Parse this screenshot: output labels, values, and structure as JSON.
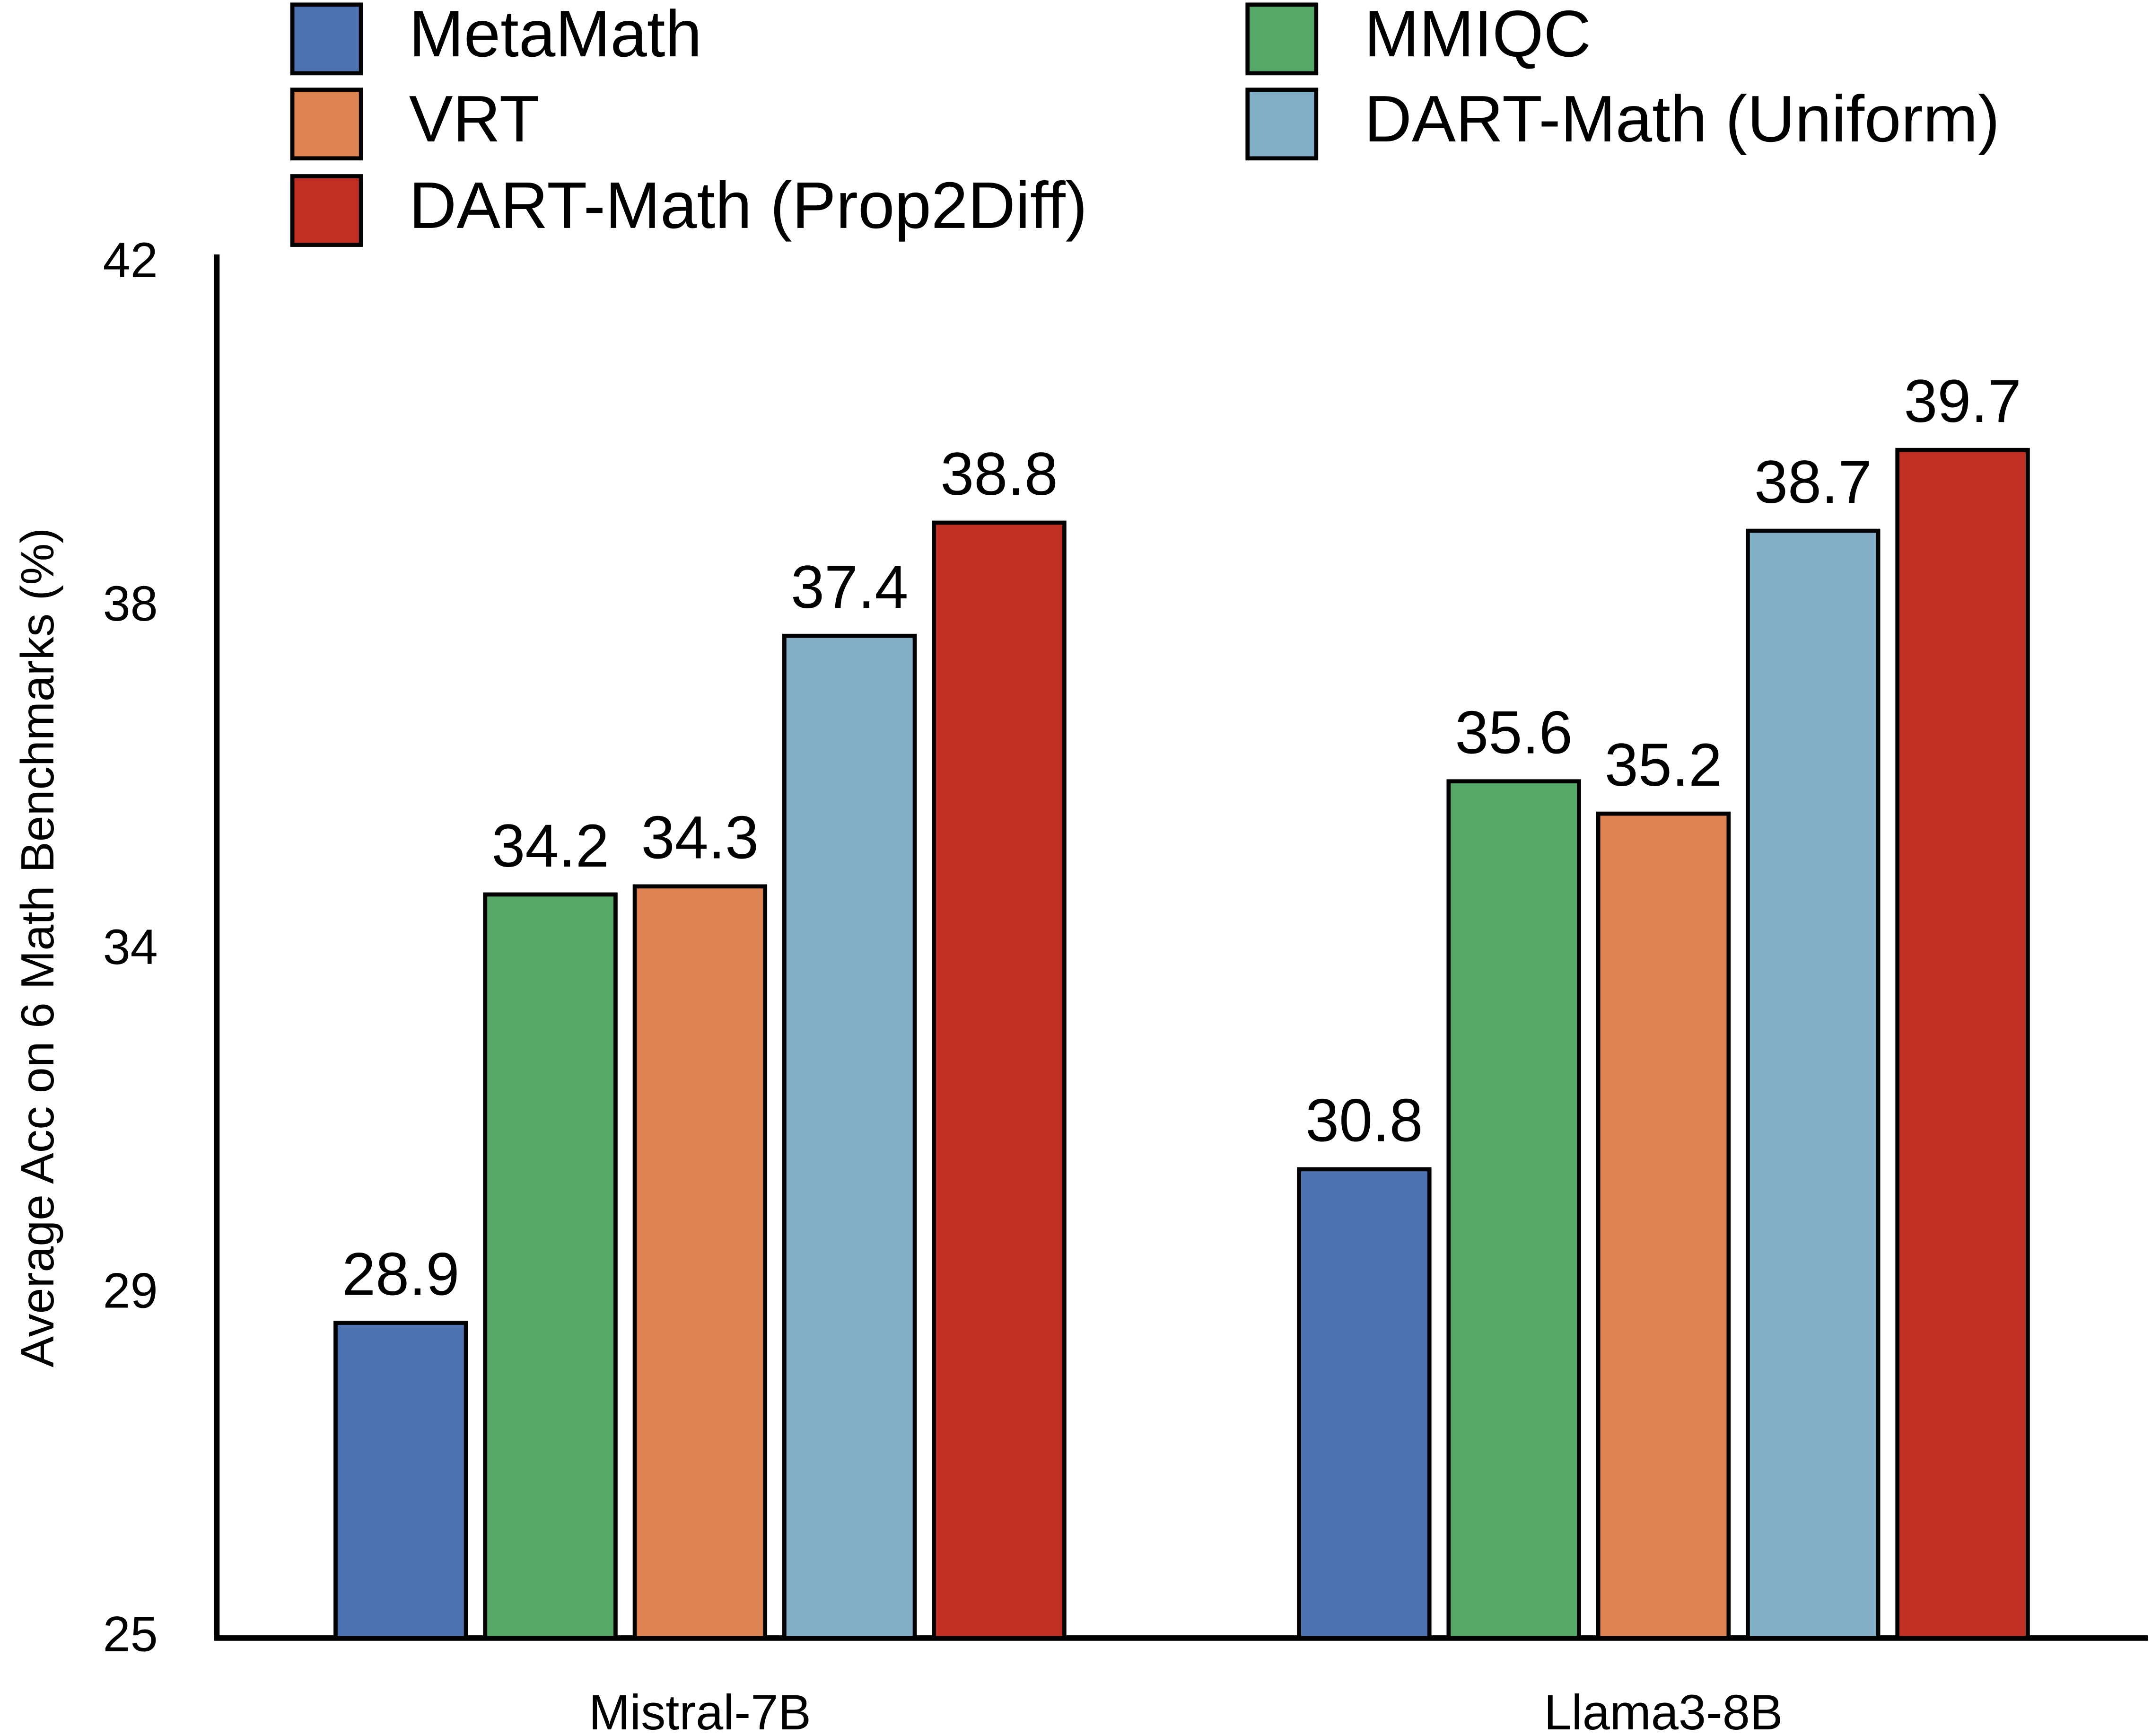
{
  "chart_data": {
    "type": "bar",
    "ylabel": "Average Acc on 6 Math Benchmarks (%)",
    "categories": [
      "Mistral-7B",
      "Llama3-8B"
    ],
    "series": [
      {
        "name": "MetaMath",
        "color": "#4c72b0",
        "values": [
          28.9,
          30.8
        ]
      },
      {
        "name": "MMIQC",
        "color": "#55a868",
        "values": [
          34.2,
          35.6
        ]
      },
      {
        "name": "VRT",
        "color": "#dd8452",
        "values": [
          34.3,
          35.2
        ]
      },
      {
        "name": "DART-Math (Uniform)",
        "color": "#82aec8",
        "values": [
          37.4,
          38.7
        ]
      },
      {
        "name": "DART-Math (Prop2Diff)",
        "color": "#c03024",
        "values": [
          38.8,
          39.7
        ]
      }
    ],
    "ylim": [
      25,
      42
    ],
    "yticks": [
      25,
      {
        "value": 29.25,
        "label": "29"
      },
      {
        "value": 33.5,
        "label": "34"
      },
      {
        "value": 37.75,
        "label": "38"
      },
      42
    ],
    "grid": false,
    "legend": "top"
  }
}
